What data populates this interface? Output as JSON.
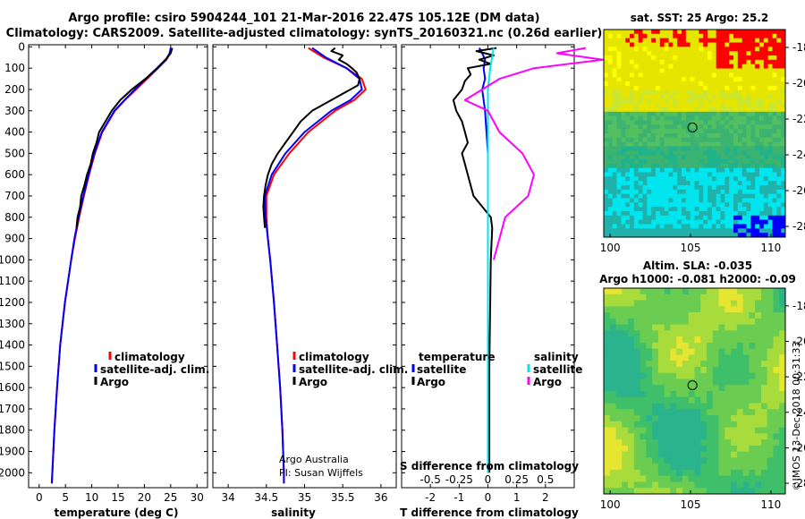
{
  "header": {
    "title_line1": "Argo profile: csiro 5904244_101 21-Mar-2016 22.47S 105.12E (DM data)",
    "title_line2": "Climatology: CARS2009. Satellite-adjusted climatology: synTS_20160321.nc (0.26d earlier)"
  },
  "colors": {
    "climatology": "#ff0000",
    "satellite": "#0000ff",
    "argo": "#000000",
    "salinity_satellite": "#00e5ee",
    "salinity_argo": "#ff00ff"
  },
  "chart_data": [
    {
      "type": "line",
      "name": "temperature-profile",
      "xlabel": "temperature (deg C)",
      "xlim": [
        -2,
        32
      ],
      "xticks": [
        0,
        5,
        10,
        15,
        20,
        25,
        30
      ],
      "ylim": [
        2070,
        -10
      ],
      "yticks": [
        0,
        100,
        200,
        300,
        400,
        500,
        600,
        700,
        800,
        900,
        1000,
        1100,
        1200,
        1300,
        1400,
        1500,
        1600,
        1700,
        1800,
        1900,
        2000
      ],
      "legend": [
        "climatology",
        "satellite-adj. clim.",
        "Argo"
      ],
      "series": [
        {
          "name": "climatology",
          "color": "#ff0000",
          "depth": [
            5,
            30,
            60,
            100,
            150,
            200,
            250,
            300,
            400,
            500,
            600,
            700,
            800,
            900,
            1000,
            1200,
            1400,
            1600,
            1800,
            2000,
            2050
          ],
          "value": [
            25.1,
            24.9,
            24.2,
            22.6,
            20.5,
            18.4,
            16.3,
            14.4,
            12.0,
            10.6,
            9.5,
            8.5,
            7.6,
            6.8,
            6.1,
            4.9,
            4.0,
            3.4,
            2.9,
            2.5,
            2.4
          ]
        },
        {
          "name": "satellite-adj. clim.",
          "color": "#0000ff",
          "depth": [
            5,
            30,
            60,
            100,
            150,
            200,
            250,
            300,
            400,
            500,
            600,
            700,
            800,
            900,
            1000,
            1200,
            1400,
            1600,
            1800,
            2000,
            2050
          ],
          "value": [
            25.0,
            24.8,
            24.1,
            22.5,
            20.3,
            18.2,
            16.2,
            14.3,
            11.9,
            10.5,
            9.4,
            8.4,
            7.5,
            6.7,
            6.1,
            4.9,
            4.0,
            3.4,
            2.9,
            2.5,
            2.4
          ]
        },
        {
          "name": "Argo",
          "color": "#000000",
          "depth": [
            5,
            30,
            60,
            100,
            150,
            200,
            250,
            300,
            350,
            400,
            450,
            500,
            550,
            600,
            650,
            700,
            750,
            800,
            850
          ],
          "value": [
            25.3,
            25.0,
            24.0,
            22.4,
            20.2,
            17.6,
            15.4,
            13.8,
            12.6,
            11.4,
            10.9,
            10.2,
            9.8,
            9.1,
            8.6,
            8.0,
            7.8,
            7.3,
            7.1
          ]
        }
      ]
    },
    {
      "type": "line",
      "name": "salinity-profile",
      "xlabel": "salinity",
      "xlim": [
        33.8,
        36.2
      ],
      "xticks": [
        34,
        34.5,
        35,
        35.5,
        36
      ],
      "ylim": [
        2070,
        -10
      ],
      "legend": [
        "climatology",
        "satellite-adj. clim.",
        "Argo"
      ],
      "annotation": [
        "Argo Australia",
        "PI: Susan Wijffels"
      ],
      "series": [
        {
          "name": "climatology",
          "color": "#ff0000",
          "depth": [
            5,
            50,
            100,
            150,
            200,
            250,
            300,
            400,
            500,
            600,
            700,
            800,
            900,
            1000,
            1200,
            1400,
            1600,
            1800,
            2000,
            2050
          ],
          "value": [
            35.05,
            35.25,
            35.55,
            35.75,
            35.8,
            35.65,
            35.4,
            35.05,
            34.8,
            34.6,
            34.5,
            34.5,
            34.52,
            34.55,
            34.6,
            34.64,
            34.68,
            34.71,
            34.73,
            34.73
          ]
        },
        {
          "name": "satellite-adj. clim.",
          "color": "#0000ff",
          "depth": [
            5,
            50,
            100,
            150,
            200,
            250,
            300,
            400,
            500,
            600,
            700,
            800,
            900,
            1000,
            1200,
            1400,
            1600,
            1800,
            2000,
            2050
          ],
          "value": [
            35.1,
            35.28,
            35.55,
            35.72,
            35.75,
            35.6,
            35.35,
            35.0,
            34.75,
            34.57,
            34.48,
            34.49,
            34.52,
            34.55,
            34.6,
            34.64,
            34.68,
            34.71,
            34.73,
            34.73
          ]
        },
        {
          "name": "Argo",
          "color": "#000000",
          "depth": [
            5,
            20,
            40,
            60,
            80,
            100,
            120,
            150,
            180,
            200,
            230,
            260,
            300,
            350,
            400,
            450,
            500,
            550,
            600,
            650,
            700,
            750,
            800,
            850
          ],
          "value": [
            35.4,
            35.35,
            35.5,
            35.45,
            35.55,
            35.62,
            35.68,
            35.72,
            35.7,
            35.6,
            35.45,
            35.3,
            35.1,
            34.95,
            34.85,
            34.75,
            34.65,
            34.57,
            34.52,
            34.49,
            34.47,
            34.46,
            34.47,
            34.48
          ]
        }
      ]
    },
    {
      "type": "line",
      "name": "difference-profile",
      "xlabel": "T difference from climatology",
      "xlabel_top": "S difference from climatology",
      "xlim": [
        -3,
        3
      ],
      "xticks": [
        -2,
        -1,
        0,
        1,
        2
      ],
      "xticks_top": [
        -0.5,
        -0.25,
        0,
        0.25,
        0.5
      ],
      "xticklabels_top": [
        "-0.5",
        "-0.25",
        "0",
        "0.25",
        "0.5"
      ],
      "ylim": [
        2070,
        -10
      ],
      "legend_left": {
        "title": "temperature",
        "items": [
          "satellite",
          "Argo"
        ]
      },
      "legend_right": {
        "title": "salinity",
        "items": [
          "satellite",
          "Argo"
        ]
      },
      "series": [
        {
          "name": "temperature satellite",
          "color": "#0000ff",
          "depth": [
            5,
            30,
            60,
            100,
            150,
            200,
            300,
            400,
            500,
            600,
            800,
            1000,
            1500,
            2000
          ],
          "value": [
            -0.3,
            -0.2,
            -0.1,
            -0.15,
            -0.1,
            -0.2,
            -0.1,
            -0.05,
            0,
            0,
            0,
            0,
            0,
            0
          ]
        },
        {
          "name": "temperature Argo",
          "color": "#000000",
          "depth": [
            5,
            20,
            40,
            60,
            80,
            100,
            130,
            160,
            200,
            250,
            300,
            350,
            400,
            450,
            500,
            550,
            600,
            650,
            700,
            750,
            800,
            850,
            1000,
            1500,
            2000
          ],
          "value": [
            0.3,
            -0.4,
            0.2,
            -0.3,
            0.1,
            -0.7,
            -0.6,
            -0.8,
            -0.9,
            -1.2,
            -1.1,
            -0.9,
            -0.8,
            -0.7,
            -0.9,
            -0.8,
            -0.7,
            -0.6,
            -0.5,
            -0.2,
            0.1,
            0.15,
            0.1,
            0.05,
            0.05
          ]
        },
        {
          "name": "salinity satellite",
          "color": "#00e5ee",
          "depth": [
            5,
            100,
            200,
            400,
            600,
            800,
            1000,
            1500,
            2000
          ],
          "value": [
            0.05,
            0.02,
            0,
            0,
            0,
            0,
            0,
            0,
            0
          ]
        },
        {
          "name": "salinity Argo",
          "color": "#ff00ff",
          "depth": [
            5,
            30,
            60,
            100,
            150,
            200,
            250,
            300,
            400,
            500,
            600,
            700,
            750,
            800,
            900,
            1000
          ],
          "value": [
            0.85,
            0.6,
            1.0,
            0.4,
            0.1,
            -0.05,
            -0.2,
            0,
            0.1,
            0.3,
            0.4,
            0.35,
            0.25,
            0.15,
            0.1,
            0.05
          ]
        }
      ]
    },
    {
      "type": "heatmap",
      "name": "sst-map",
      "title": "sat. SST: 25 Argo: 25.2",
      "xticks": [
        100,
        105,
        110
      ],
      "yticks": [
        -18,
        -20,
        -22,
        -24,
        -26,
        -28
      ],
      "marker_lon": 105.12,
      "marker_lat": -22.47
    },
    {
      "type": "heatmap",
      "name": "sla-map",
      "title_line1": "Altim. SLA: -0.035",
      "title_line2": "Argo h1000: -0.081 h2000: -0.09",
      "xticks": [
        100,
        105,
        110
      ],
      "yticks": [
        -18,
        -20,
        -22,
        -24,
        -26,
        -28
      ],
      "marker_lon": 105.12,
      "marker_lat": -22.47
    }
  ],
  "credit": "©IMOS 13-Dec-2018 00:31:33"
}
